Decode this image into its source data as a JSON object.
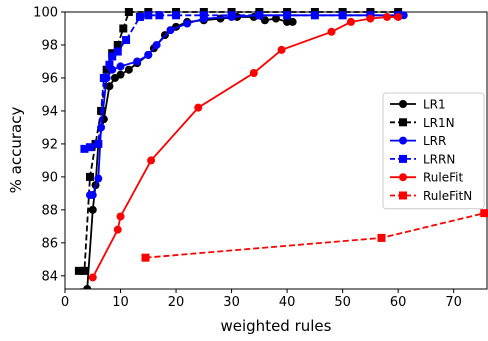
{
  "chart_data": {
    "type": "line",
    "xlabel": "weighted rules",
    "ylabel": "% accuracy",
    "xlim": [
      0,
      76
    ],
    "ylim": [
      83.2,
      100
    ],
    "xticks": [
      0,
      10,
      20,
      30,
      40,
      50,
      60,
      70
    ],
    "yticks": [
      84,
      86,
      88,
      90,
      92,
      94,
      96,
      98,
      100
    ],
    "legend_position": "center-right",
    "series": [
      {
        "name": "LR1",
        "color": "#000000",
        "marker": "circle",
        "dash": "solid",
        "points": [
          [
            3.0,
            83.0
          ],
          [
            4.0,
            83.2
          ],
          [
            5.0,
            88.0
          ],
          [
            5.5,
            89.5
          ],
          [
            6.0,
            92.0
          ],
          [
            7.0,
            93.5
          ],
          [
            8.0,
            95.5
          ],
          [
            9.0,
            96.0
          ],
          [
            10.0,
            96.2
          ],
          [
            11.5,
            96.5
          ],
          [
            13.0,
            96.9
          ],
          [
            15.0,
            97.4
          ],
          [
            16.0,
            97.8
          ],
          [
            18.0,
            98.6
          ],
          [
            20.0,
            99.1
          ],
          [
            22.0,
            99.4
          ],
          [
            25.0,
            99.5
          ],
          [
            28.0,
            99.6
          ],
          [
            31.0,
            99.7
          ],
          [
            34.0,
            99.7
          ],
          [
            36.0,
            99.5
          ],
          [
            38.0,
            99.6
          ],
          [
            40.0,
            99.4
          ],
          [
            41.0,
            99.4
          ]
        ]
      },
      {
        "name": "LR1N",
        "color": "#000000",
        "marker": "square",
        "dash": "dashed",
        "points": [
          [
            2.5,
            84.3
          ],
          [
            3.5,
            84.3
          ],
          [
            4.5,
            90.0
          ],
          [
            5.5,
            92.0
          ],
          [
            6.5,
            94.0
          ],
          [
            7.5,
            96.5
          ],
          [
            8.5,
            97.5
          ],
          [
            9.5,
            98.0
          ],
          [
            10.5,
            99.0
          ],
          [
            11.5,
            100.0
          ],
          [
            15.0,
            100.0
          ],
          [
            20.0,
            100.0
          ],
          [
            25.0,
            100.0
          ],
          [
            30.0,
            100.0
          ],
          [
            35.0,
            100.0
          ],
          [
            40.0,
            100.0
          ],
          [
            45.0,
            100.0
          ],
          [
            50.0,
            100.0
          ],
          [
            55.0,
            100.0
          ],
          [
            60.0,
            100.0
          ]
        ]
      },
      {
        "name": "LRR",
        "color": "#0000ff",
        "marker": "circle",
        "dash": "solid",
        "points": [
          [
            4.5,
            88.9
          ],
          [
            5.0,
            88.9
          ],
          [
            6.0,
            89.9
          ],
          [
            6.5,
            93.0
          ],
          [
            7.5,
            96.0
          ],
          [
            8.5,
            96.5
          ],
          [
            10.0,
            96.7
          ],
          [
            13.0,
            97.0
          ],
          [
            15.0,
            97.4
          ],
          [
            16.5,
            98.0
          ],
          [
            19.0,
            98.9
          ],
          [
            22.0,
            99.3
          ],
          [
            25.0,
            99.6
          ],
          [
            30.0,
            99.7
          ],
          [
            35.0,
            99.8
          ],
          [
            40.0,
            99.8
          ],
          [
            45.0,
            99.8
          ],
          [
            50.0,
            99.8
          ],
          [
            55.0,
            99.8
          ],
          [
            61.0,
            99.8
          ]
        ]
      },
      {
        "name": "LRRN",
        "color": "#0000ff",
        "marker": "square",
        "dash": "dashed",
        "points": [
          [
            3.5,
            91.7
          ],
          [
            4.5,
            91.8
          ],
          [
            6.0,
            92.0
          ],
          [
            7.0,
            96.0
          ],
          [
            8.0,
            96.8
          ],
          [
            8.5,
            97.3
          ],
          [
            9.5,
            97.6
          ],
          [
            11.0,
            98.3
          ],
          [
            13.5,
            99.7
          ],
          [
            15.0,
            99.8
          ],
          [
            17.0,
            99.8
          ],
          [
            20.0,
            99.8
          ],
          [
            25.0,
            99.8
          ],
          [
            30.0,
            99.8
          ],
          [
            35.0,
            99.8
          ],
          [
            40.0,
            99.8
          ],
          [
            45.0,
            99.8
          ],
          [
            50.0,
            99.8
          ],
          [
            55.0,
            99.8
          ],
          [
            60.0,
            99.8
          ]
        ]
      },
      {
        "name": "RuleFit",
        "color": "#ff0000",
        "marker": "circle",
        "dash": "solid",
        "points": [
          [
            5.0,
            83.9
          ],
          [
            9.5,
            86.8
          ],
          [
            10.0,
            87.6
          ],
          [
            15.5,
            91.0
          ],
          [
            24.0,
            94.2
          ],
          [
            34.0,
            96.3
          ],
          [
            39.0,
            97.7
          ],
          [
            48.0,
            98.8
          ],
          [
            51.5,
            99.4
          ],
          [
            55.0,
            99.6
          ],
          [
            58.0,
            99.7
          ],
          [
            60.0,
            99.7
          ]
        ]
      },
      {
        "name": "RuleFitN",
        "color": "#ff0000",
        "marker": "square",
        "dash": "dashed",
        "points": [
          [
            14.5,
            85.1
          ],
          [
            57.0,
            86.3
          ],
          [
            75.5,
            87.8
          ]
        ]
      }
    ]
  }
}
